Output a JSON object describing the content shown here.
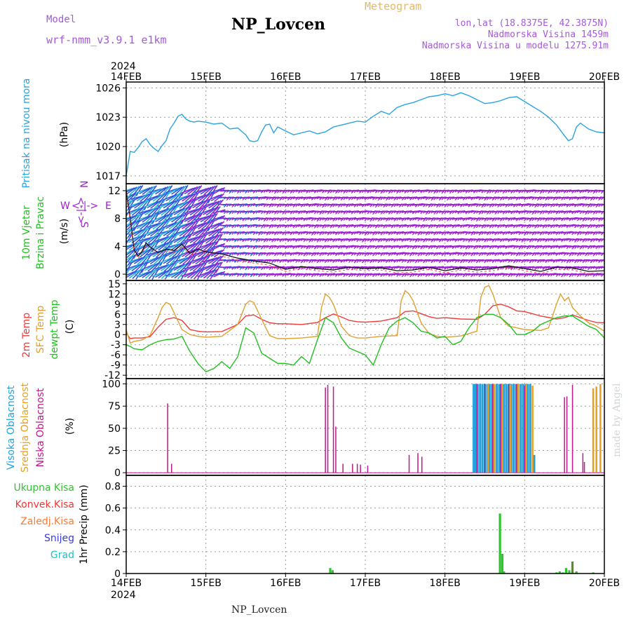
{
  "header": {
    "model_label": "Model",
    "model_name": "wrf-nmm_v3.9.1 e1km",
    "title": "NP_Lovcen",
    "meteogram": "Meteogram",
    "lonlat": "lon,lat (18.8375E, 42.3875N)",
    "altitude": "Nadmorska Visina 1459m",
    "model_altitude": "Nadmorska Visina u modelu 1275.91m"
  },
  "footer": {
    "station": "NP_Lovcen",
    "credit": "made by Angel"
  },
  "time_axis": {
    "year": "2024",
    "ticks": [
      "14FEB",
      "15FEB",
      "16FEB",
      "17FEB",
      "18FEB",
      "19FEB",
      "20FEB"
    ]
  },
  "colors": {
    "pressure": "#29a3e0",
    "wind_magenta": "#9b1fd1",
    "wind_blue": "#3355dd",
    "wind_cyan": "#20b8d8",
    "temp2m": "#ef3b3b",
    "sfc": "#e0a030",
    "dewpt": "#21c021",
    "cloud_high": "#1ea4e0",
    "cloud_mid": "#e8a020",
    "cloud_low": "#c0188c",
    "precip_total": "#2ec42e",
    "precip_conv": "#ff3030",
    "precip_ice": "#ff7a30",
    "precip_snow": "#3a3ae0",
    "precip_grad": "#20c0c0"
  },
  "chart_data": [
    {
      "type": "line",
      "panel": "pressure",
      "ylabel": "(hPa)",
      "side_label": "Pritisak na nivou mora",
      "yticks": [
        1017,
        1020,
        1023,
        1026
      ],
      "ylim": [
        1016.2,
        1026.6
      ],
      "xlim": [
        0,
        6
      ],
      "grid": true,
      "series": [
        {
          "x": [
            0,
            0.05,
            0.1,
            0.15,
            0.2,
            0.25,
            0.3,
            0.35,
            0.4,
            0.45,
            0.5,
            0.55,
            0.6,
            0.65,
            0.7,
            0.75,
            0.8,
            0.85,
            0.9,
            1.0,
            1.1,
            1.2,
            1.3,
            1.4,
            1.5,
            1.55,
            1.6,
            1.65,
            1.7,
            1.75,
            1.8,
            1.85,
            1.9,
            2.0,
            2.1,
            2.2,
            2.3,
            2.4,
            2.5,
            2.6,
            2.7,
            2.8,
            2.9,
            3.0,
            3.1,
            3.2,
            3.3,
            3.4,
            3.5,
            3.6,
            3.7,
            3.8,
            3.9,
            4.0,
            4.1,
            4.2,
            4.3,
            4.4,
            4.5,
            4.6,
            4.7,
            4.8,
            4.9,
            5.0,
            5.1,
            5.2,
            5.3,
            5.4,
            5.5,
            5.55,
            5.6,
            5.65,
            5.7,
            5.8,
            5.9,
            6.0
          ],
          "y": [
            1017.0,
            1019.5,
            1019.4,
            1019.9,
            1020.5,
            1020.8,
            1020.2,
            1019.8,
            1019.5,
            1020.1,
            1020.6,
            1021.8,
            1022.4,
            1023.1,
            1023.3,
            1022.8,
            1022.6,
            1022.5,
            1022.6,
            1022.5,
            1022.3,
            1022.4,
            1021.8,
            1021.9,
            1021.2,
            1020.6,
            1020.5,
            1020.6,
            1021.5,
            1022.2,
            1022.3,
            1021.4,
            1022.0,
            1021.6,
            1021.2,
            1021.4,
            1021.6,
            1021.3,
            1021.5,
            1022.0,
            1022.2,
            1022.4,
            1022.6,
            1022.5,
            1023.1,
            1023.6,
            1023.3,
            1024.0,
            1024.3,
            1024.5,
            1024.8,
            1025.1,
            1025.2,
            1025.4,
            1025.2,
            1025.5,
            1025.2,
            1024.8,
            1024.4,
            1024.5,
            1024.7,
            1025.0,
            1025.1,
            1024.6,
            1024.1,
            1023.6,
            1023.0,
            1022.2,
            1021.1,
            1020.6,
            1020.8,
            1022.0,
            1022.4,
            1021.8,
            1021.5,
            1021.4
          ]
        }
      ]
    },
    {
      "type": "line",
      "panel": "wind",
      "ylabel": "(m/s)",
      "side_label_1": "10m Vjetar",
      "side_label_2": "Brzina i Pravac",
      "compass_n": "N",
      "compass_arrow": "<-|->",
      "compass_s": "S",
      "compass_w": "W",
      "compass_e": "E",
      "yticks": [
        0,
        4,
        8,
        12
      ],
      "ylim": [
        -0.9,
        13.0
      ],
      "xlim": [
        0,
        6
      ],
      "grid": true,
      "barb_rows": [
        0,
        1,
        2,
        3,
        4,
        5,
        6,
        7,
        8,
        9,
        10,
        11,
        12
      ],
      "series": [
        {
          "name": "speed",
          "x": [
            0,
            0.05,
            0.1,
            0.15,
            0.2,
            0.25,
            0.3,
            0.4,
            0.5,
            0.6,
            0.7,
            0.8,
            0.9,
            1.0,
            1.2,
            1.4,
            1.6,
            1.8,
            2.0,
            2.2,
            2.4,
            2.6,
            2.8,
            3.0,
            3.2,
            3.4,
            3.6,
            3.8,
            4.0,
            4.2,
            4.4,
            4.6,
            4.8,
            5.0,
            5.2,
            5.4,
            5.6,
            5.8,
            6.0
          ],
          "y": [
            12.0,
            8.0,
            3.5,
            2.6,
            3.3,
            4.5,
            3.9,
            3.1,
            3.6,
            3.4,
            4.3,
            3.0,
            3.6,
            3.2,
            2.9,
            2.3,
            1.9,
            1.6,
            0.7,
            1.1,
            0.8,
            0.6,
            1.0,
            0.8,
            0.9,
            0.5,
            0.6,
            1.0,
            0.5,
            0.9,
            0.6,
            0.8,
            1.2,
            0.8,
            0.4,
            1.0,
            0.9,
            0.4,
            0.5
          ]
        }
      ]
    },
    {
      "type": "line",
      "panel": "temperature",
      "ylabel": "(C)",
      "side_label_1": "2m Temp",
      "side_label_2": "SFC Temp",
      "side_label_3": "dewpt Temp",
      "yticks": [
        -12,
        -9,
        -6,
        -3,
        0,
        3,
        6,
        9,
        12,
        15
      ],
      "ylim": [
        -13.0,
        16.0
      ],
      "xlim": [
        0,
        6
      ],
      "grid": true,
      "series": [
        {
          "name": "2m Temp",
          "x": [
            0,
            0.05,
            0.1,
            0.2,
            0.3,
            0.4,
            0.5,
            0.6,
            0.7,
            0.8,
            0.9,
            1.0,
            1.2,
            1.4,
            1.5,
            1.6,
            1.7,
            1.8,
            1.9,
            2.0,
            2.2,
            2.4,
            2.5,
            2.6,
            2.7,
            2.8,
            2.9,
            3.0,
            3.2,
            3.4,
            3.5,
            3.6,
            3.7,
            3.8,
            3.9,
            4.0,
            4.2,
            4.4,
            4.5,
            4.6,
            4.7,
            4.8,
            4.9,
            5.0,
            5.2,
            5.4,
            5.5,
            5.6,
            5.7,
            5.8,
            5.9,
            6.0
          ],
          "y": [
            0.5,
            -1.2,
            -1.0,
            -1.0,
            -0.6,
            2.2,
            4.5,
            5.0,
            4.2,
            1.5,
            1.0,
            0.8,
            0.9,
            3.0,
            5.5,
            5.8,
            4.5,
            3.5,
            3.2,
            3.2,
            3.0,
            3.6,
            5.0,
            6.1,
            5.2,
            4.2,
            3.8,
            3.7,
            4.0,
            5.0,
            6.8,
            7.0,
            6.2,
            5.3,
            4.8,
            5.0,
            4.6,
            4.5,
            6.0,
            8.5,
            9.0,
            8.2,
            7.0,
            6.8,
            5.5,
            4.6,
            5.0,
            5.8,
            5.0,
            4.2,
            3.6,
            3.5
          ]
        },
        {
          "name": "SFC Temp",
          "x": [
            0,
            0.05,
            0.1,
            0.2,
            0.3,
            0.4,
            0.45,
            0.5,
            0.55,
            0.6,
            0.7,
            0.8,
            0.9,
            1.0,
            1.2,
            1.4,
            1.5,
            1.55,
            1.6,
            1.7,
            1.8,
            1.9,
            2.0,
            2.2,
            2.4,
            2.45,
            2.5,
            2.55,
            2.6,
            2.7,
            2.8,
            2.9,
            3.0,
            3.2,
            3.4,
            3.45,
            3.5,
            3.55,
            3.6,
            3.7,
            3.8,
            3.9,
            4.0,
            4.2,
            4.4,
            4.45,
            4.5,
            4.55,
            4.6,
            4.7,
            4.8,
            4.9,
            5.0,
            5.2,
            5.3,
            5.4,
            5.45,
            5.5,
            5.55,
            5.6,
            5.7,
            5.8,
            5.9,
            6.0
          ],
          "y": [
            1.5,
            -2.5,
            -2.0,
            -1.6,
            -0.2,
            5.0,
            8.0,
            9.5,
            9.0,
            6.5,
            1.5,
            0.0,
            -0.5,
            -0.8,
            -0.5,
            3.0,
            9.0,
            10.0,
            9.5,
            4.5,
            -0.3,
            -1.2,
            -1.2,
            -1.0,
            -0.5,
            8.0,
            12.0,
            11.0,
            9.0,
            2.5,
            -0.3,
            -1.0,
            -1.0,
            -0.5,
            -0.3,
            10.0,
            13.0,
            12.0,
            10.0,
            3.5,
            0.3,
            -0.5,
            -0.8,
            -0.4,
            1.0,
            11.0,
            14.0,
            14.5,
            12.0,
            5.0,
            2.5,
            2.0,
            1.5,
            1.2,
            2.0,
            9.0,
            12.0,
            10.0,
            11.0,
            8.0,
            5.5,
            3.5,
            2.5,
            1.0
          ]
        },
        {
          "name": "dewpt Temp",
          "x": [
            0,
            0.05,
            0.1,
            0.2,
            0.3,
            0.4,
            0.5,
            0.6,
            0.7,
            0.8,
            0.9,
            1.0,
            1.1,
            1.2,
            1.3,
            1.4,
            1.5,
            1.6,
            1.7,
            1.8,
            1.9,
            2.0,
            2.1,
            2.2,
            2.3,
            2.4,
            2.5,
            2.6,
            2.7,
            2.8,
            2.9,
            3.0,
            3.1,
            3.2,
            3.3,
            3.4,
            3.5,
            3.6,
            3.7,
            3.8,
            3.9,
            4.0,
            4.1,
            4.2,
            4.3,
            4.4,
            4.5,
            4.6,
            4.7,
            4.8,
            4.9,
            5.0,
            5.1,
            5.2,
            5.3,
            5.4,
            5.5,
            5.6,
            5.7,
            5.8,
            5.9,
            6.0
          ],
          "y": [
            -3.0,
            -3.5,
            -4.2,
            -4.5,
            -3.0,
            -2.0,
            -1.5,
            -1.3,
            -0.5,
            -5.0,
            -8.5,
            -11.0,
            -10.0,
            -8.0,
            -10.0,
            -6.5,
            2.0,
            0.5,
            -5.5,
            -7.0,
            -8.5,
            -8.5,
            -9.0,
            -6.5,
            -8.5,
            -1.5,
            5.0,
            3.5,
            -1.0,
            -4.0,
            -5.0,
            -6.0,
            -9.0,
            -3.0,
            2.0,
            4.0,
            5.0,
            3.5,
            1.0,
            0.5,
            -1.0,
            -0.5,
            -3.0,
            -2.0,
            2.0,
            5.0,
            6.0,
            6.0,
            5.0,
            3.0,
            0.0,
            0.0,
            1.0,
            3.0,
            4.0,
            5.0,
            5.5,
            5.5,
            4.0,
            2.5,
            1.5,
            -1.0
          ]
        }
      ]
    },
    {
      "type": "bar",
      "panel": "clouds",
      "ylabel": "(%)",
      "side_label_1": "Visoka Oblacnost",
      "side_label_2": "Srednja Oblacnost",
      "side_label_3": "Niska Oblacnost",
      "yticks": [
        0,
        25,
        50,
        75,
        100
      ],
      "ylim": [
        -3,
        106
      ],
      "xlim": [
        0,
        6
      ],
      "grid": true,
      "series": [
        {
          "name": "Niska Oblacnost",
          "x": [
            0.52,
            0.57,
            2.5,
            2.53,
            2.6,
            2.63,
            2.72,
            2.84,
            2.9,
            2.94,
            3.03,
            3.55,
            3.66,
            3.71,
            4.4,
            4.5,
            4.6,
            4.7,
            4.8,
            4.9,
            5.0,
            5.5,
            5.53,
            5.6,
            5.73,
            5.75
          ],
          "values": [
            78,
            10,
            96,
            99,
            97,
            52,
            10,
            10,
            10,
            9,
            8,
            20,
            22,
            18,
            100,
            100,
            100,
            100,
            100,
            100,
            98,
            85,
            86,
            99,
            22,
            12
          ]
        },
        {
          "name": "Srednja Oblacnost",
          "x": [
            4.54,
            4.62,
            4.72,
            4.82,
            4.92,
            5.02,
            5.1,
            5.86,
            5.9,
            5.95
          ],
          "values": [
            100,
            100,
            100,
            99,
            100,
            100,
            98,
            95,
            97,
            100
          ]
        },
        {
          "name": "Visoka Oblacnost",
          "x": [
            4.36,
            4.38,
            4.41,
            4.44,
            4.47,
            4.5,
            4.53,
            4.56,
            4.59,
            4.62,
            4.65,
            4.68,
            4.71,
            4.74,
            4.77,
            4.8,
            4.83,
            4.86,
            4.89,
            4.92,
            4.95,
            4.98,
            5.01,
            5.04,
            5.07,
            5.12
          ],
          "values": [
            100,
            100,
            100,
            100,
            100,
            100,
            100,
            100,
            100,
            100,
            100,
            100,
            100,
            100,
            100,
            100,
            100,
            100,
            100,
            100,
            100,
            100,
            100,
            100,
            100,
            20
          ]
        }
      ]
    },
    {
      "type": "bar",
      "panel": "precipitation",
      "ylabel": "1hr Precip (mm)",
      "legend": [
        "Ukupna Kisa",
        "Konvek.Kisa",
        "Zaledj.Kisa",
        "Snijeg",
        "Grad"
      ],
      "yticks": [
        0,
        0.2,
        0.4,
        0.6,
        0.8
      ],
      "ylim": [
        0,
        0.9
      ],
      "xlim": [
        0,
        6
      ],
      "grid": true,
      "series": [
        {
          "name": "Ukupna Kisa",
          "x": [
            2.56,
            2.59,
            4.69,
            4.72,
            4.74,
            5.4,
            5.44,
            5.48,
            5.52,
            5.56,
            5.6,
            5.65,
            5.86
          ],
          "values": [
            0.05,
            0.03,
            0.55,
            0.18,
            0.02,
            0.01,
            0.02,
            0.01,
            0.05,
            0.03,
            0.11,
            0.02,
            0.01
          ]
        }
      ]
    }
  ]
}
